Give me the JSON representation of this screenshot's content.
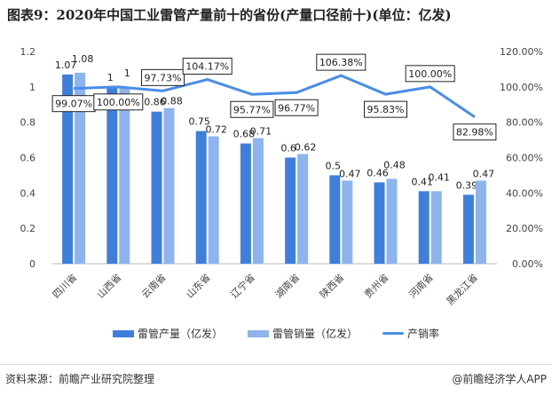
{
  "title": "图表9：2020年中国工业雷管产量前十的省份(产量口径前十)(单位：亿发)",
  "chart_data": {
    "type": "bar",
    "title": "图表9：2020年中国工业雷管产量前十的省份(产量口径前十)(单位：亿发)",
    "categories": [
      "四川省",
      "山西省",
      "云南省",
      "山东省",
      "辽宁省",
      "湖南省",
      "陕西省",
      "贵州省",
      "河南省",
      "黑龙江省"
    ],
    "series": [
      {
        "name": "雷管产量（亿发）",
        "type": "bar",
        "axis": "left",
        "color": "#3f7fdc",
        "values": [
          1.07,
          1,
          0.86,
          0.75,
          0.68,
          0.6,
          0.5,
          0.46,
          0.41,
          0.39
        ],
        "labels": [
          "1.07",
          "1",
          "0.86",
          "0.75",
          "0.68",
          "0.6",
          "0.5",
          "0.46",
          "0.41",
          "0.39"
        ]
      },
      {
        "name": "雷管销量（亿发）",
        "type": "bar",
        "axis": "left",
        "color": "#8db4ee",
        "values": [
          1.08,
          1,
          0.88,
          0.72,
          0.71,
          0.62,
          0.47,
          0.48,
          0.41,
          0.47
        ],
        "labels": [
          "1.08",
          "1",
          "0.88",
          "0.72",
          "0.71",
          "0.62",
          "0.47",
          "0.48",
          "0.41",
          "0.47"
        ]
      },
      {
        "name": "产销率",
        "type": "line",
        "axis": "right",
        "color": "#4a8de6",
        "values": [
          99.07,
          100.0,
          97.73,
          104.17,
          95.77,
          96.77,
          106.38,
          95.83,
          100.0,
          82.98
        ],
        "labels": [
          "99.07%",
          "100.00%",
          "97.73%",
          "104.17%",
          "95.77%",
          "96.77%",
          "106.38%",
          "95.83%",
          "100.00%",
          "82.98%"
        ],
        "label_side": [
          "below",
          "below",
          "above",
          "above",
          "below",
          "below",
          "above",
          "below",
          "above",
          "below"
        ]
      }
    ],
    "yleft": {
      "ylim": [
        0,
        1.2
      ],
      "ticks": [
        "0",
        "0.2",
        "0.4",
        "0.6",
        "0.8",
        "1",
        "1.2"
      ]
    },
    "yright": {
      "ylim": [
        0,
        120
      ],
      "ticks": [
        "0.00%",
        "20.00%",
        "40.00%",
        "60.00%",
        "80.00%",
        "100.00%",
        "120.00%"
      ]
    },
    "grid": false,
    "legend": "bottom"
  },
  "legend": [
    "雷管产量（亿发）",
    "雷管销量（亿发）",
    "产销率"
  ],
  "source": "资料来源：前瞻产业研究院整理",
  "brand": "@前瞻经济学人APP"
}
